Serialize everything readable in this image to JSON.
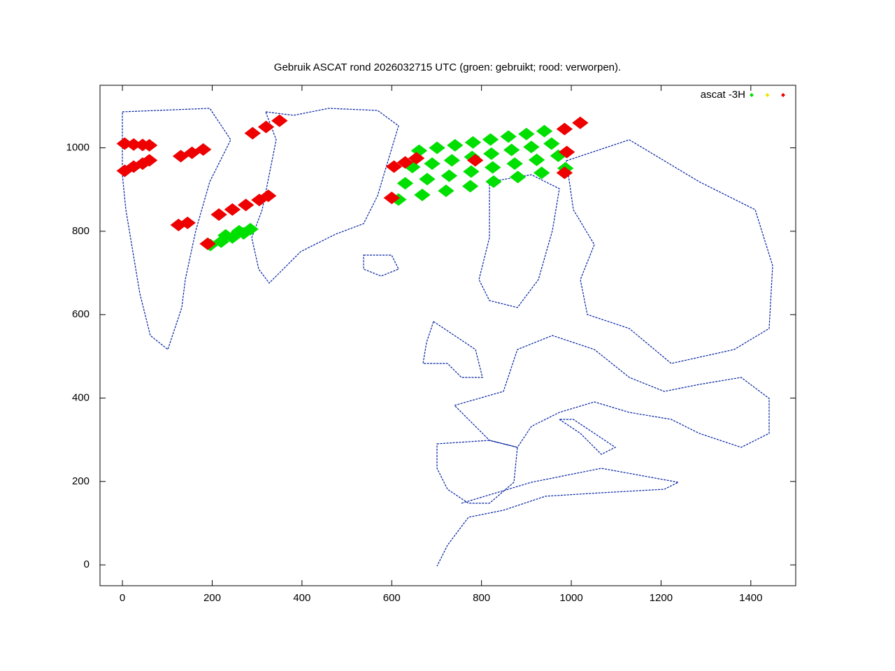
{
  "chart_data": {
    "type": "scatter",
    "title": "Gebruik ASCAT rond 2026032715 UTC (groen: gebruikt; rood: verworpen).",
    "xlim": [
      -50,
      1500
    ],
    "ylim": [
      -50,
      1150
    ],
    "xticks": [
      0,
      200,
      400,
      600,
      800,
      1000,
      1200,
      1400
    ],
    "yticks": [
      0,
      200,
      400,
      600,
      800,
      1000
    ],
    "legend": "upper right",
    "series": [
      {
        "name": "ascat -3H",
        "color": "#00e000",
        "x": [
          615,
          630,
          646,
          661,
          668,
          679,
          690,
          701,
          721,
          728,
          734,
          741,
          775,
          777,
          779,
          781,
          827,
          825,
          822,
          820,
          881,
          874,
          867,
          860,
          934,
          923,
          911,
          900,
          987,
          971,
          956,
          940,
          196,
          220,
          245,
          270,
          285,
          230,
          260
        ],
        "values": [
          876,
          915,
          954,
          993,
          887,
          925,
          962,
          1000,
          897,
          933,
          970,
          1006,
          908,
          943,
          978,
          1013,
          919,
          953,
          986,
          1020,
          930,
          962,
          995,
          1027,
          940,
          971,
          1002,
          1033,
          951,
          981,
          1010,
          1040,
          767,
          775,
          785,
          795,
          805,
          790,
          800
        ]
      },
      {
        "color": "#e8e800",
        "x": [],
        "values": []
      },
      {
        "color": "#ee0000",
        "x": [
          5,
          25,
          45,
          60,
          5,
          25,
          45,
          60,
          130,
          155,
          180,
          290,
          320,
          350,
          215,
          245,
          275,
          305,
          325,
          125,
          145,
          190,
          605,
          630,
          655,
          600,
          985,
          1020,
          990,
          985,
          786
        ],
        "values": [
          1010,
          1008,
          1007,
          1006,
          945,
          955,
          962,
          970,
          980,
          988,
          996,
          1035,
          1050,
          1065,
          840,
          852,
          863,
          875,
          885,
          815,
          820,
          770,
          955,
          965,
          975,
          880,
          1045,
          1060,
          990,
          940,
          970
        ]
      }
    ]
  }
}
